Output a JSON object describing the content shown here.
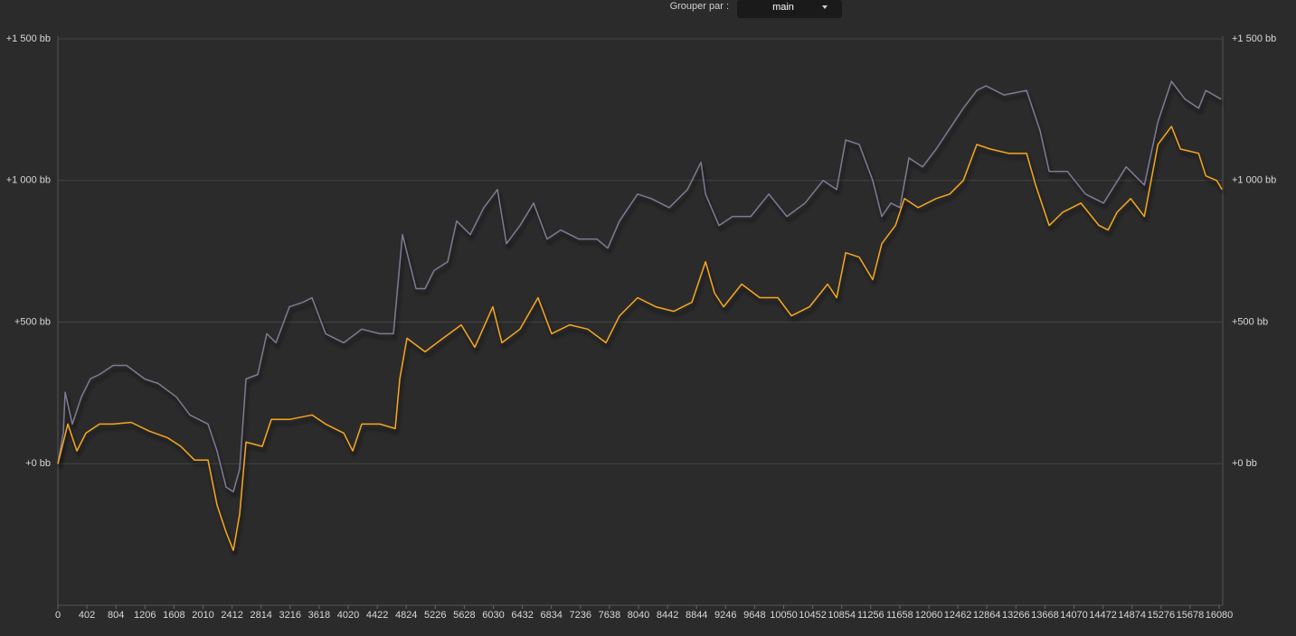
{
  "controls": {
    "group_label": "Grouper par :",
    "group_value": "main"
  },
  "chart_data": {
    "type": "line",
    "xlim": [
      0,
      16130
    ],
    "ylim": [
      -500,
      1500
    ],
    "xticks": [
      0,
      402,
      804,
      1206,
      1608,
      2010,
      2412,
      2814,
      3216,
      3618,
      4020,
      4422,
      4824,
      5226,
      5628,
      6030,
      6432,
      6834,
      7236,
      7638,
      8040,
      8442,
      8844,
      9246,
      9648,
      10050,
      10452,
      10854,
      11256,
      11658,
      12060,
      12462,
      12864,
      13266,
      13668,
      14070,
      14472,
      14874,
      15276,
      15678,
      16080
    ],
    "yticks": [
      {
        "value": 0,
        "label": "+0 bb"
      },
      {
        "value": 500,
        "label": "+500 bb"
      },
      {
        "value": 1000,
        "label": "+1 000 bb"
      },
      {
        "value": 1500,
        "label": "+1 500 bb"
      }
    ],
    "grid": true,
    "series": [
      {
        "color": "#7d7a93",
        "x": [
          0,
          75,
          100,
          200,
          326,
          451,
          576,
          764,
          952,
          1202,
          1390,
          1640,
          1828,
          2079,
          2204,
          2329,
          2429,
          2517,
          2605,
          2768,
          2893,
          3019,
          3206,
          3394,
          3519,
          3707,
          3958,
          4208,
          4458,
          4646,
          4771,
          4959,
          5084,
          5209,
          5397,
          5522,
          5710,
          5898,
          6086,
          6211,
          6399,
          6587,
          6774,
          6962,
          7213,
          7463,
          7614,
          7777,
          8028,
          8216,
          8466,
          8717,
          8905,
          8968,
          9155,
          9343,
          9594,
          9844,
          10095,
          10345,
          10596,
          10784,
          10909,
          11097,
          11284,
          11409,
          11535,
          11660,
          11785,
          11973,
          12161,
          12287,
          12537,
          12725,
          12850,
          13100,
          13414,
          13602,
          13727,
          13978,
          14229,
          14479,
          14793,
          15044,
          15232,
          15420,
          15608,
          15796,
          15896,
          16109
        ],
        "values": [
          0,
          110,
          252,
          140,
          236,
          300,
          315,
          347,
          347,
          299,
          283,
          236,
          172,
          140,
          45,
          -83,
          -99,
          -19,
          299,
          315,
          459,
          427,
          554,
          570,
          586,
          459,
          427,
          475,
          459,
          459,
          809,
          618,
          618,
          682,
          713,
          857,
          809,
          904,
          968,
          777,
          841,
          920,
          793,
          825,
          793,
          793,
          761,
          857,
          952,
          936,
          904,
          968,
          1064,
          952,
          841,
          873,
          873,
          952,
          873,
          920,
          1000,
          968,
          1143,
          1127,
          1000,
          873,
          920,
          904,
          1080,
          1048,
          1111,
          1159,
          1255,
          1318,
          1334,
          1302,
          1318,
          1175,
          1032,
          1032,
          952,
          920,
          1048,
          984,
          1207,
          1350,
          1287,
          1255,
          1318,
          1287
        ]
      },
      {
        "color": "#f5a623",
        "x": [
          0,
          75,
          138,
          263,
          388,
          576,
          764,
          1014,
          1265,
          1515,
          1703,
          1891,
          2079,
          2204,
          2329,
          2429,
          2517,
          2605,
          2830,
          2956,
          3206,
          3519,
          3707,
          3958,
          4083,
          4208,
          4458,
          4671,
          4734,
          4834,
          5084,
          5334,
          5585,
          5773,
          6023,
          6149,
          6399,
          6649,
          6837,
          7087,
          7338,
          7589,
          7777,
          8028,
          8279,
          8529,
          8779,
          8968,
          9093,
          9218,
          9469,
          9719,
          9970,
          10158,
          10408,
          10659,
          10784,
          10909,
          11097,
          11284,
          11409,
          11598,
          11723,
          11911,
          12161,
          12349,
          12537,
          12725,
          12913,
          13163,
          13414,
          13539,
          13727,
          13915,
          14166,
          14417,
          14542,
          14667,
          14855,
          15044,
          15232,
          15420,
          15545,
          15796,
          15896,
          16046,
          16120
        ],
        "values": [
          0,
          76,
          140,
          45,
          108,
          140,
          140,
          146,
          115,
          92,
          61,
          13,
          13,
          -146,
          -242,
          -306,
          -178,
          76,
          61,
          156,
          156,
          172,
          140,
          108,
          45,
          140,
          140,
          124,
          299,
          443,
          395,
          443,
          490,
          411,
          554,
          427,
          475,
          586,
          459,
          490,
          475,
          427,
          522,
          586,
          554,
          538,
          570,
          713,
          602,
          554,
          634,
          586,
          586,
          522,
          554,
          634,
          586,
          745,
          729,
          650,
          777,
          841,
          936,
          904,
          936,
          952,
          1000,
          1127,
          1111,
          1096,
          1096,
          984,
          841,
          888,
          920,
          841,
          825,
          888,
          936,
          873,
          1127,
          1191,
          1111,
          1096,
          1016,
          1000,
          968
        ]
      }
    ]
  }
}
